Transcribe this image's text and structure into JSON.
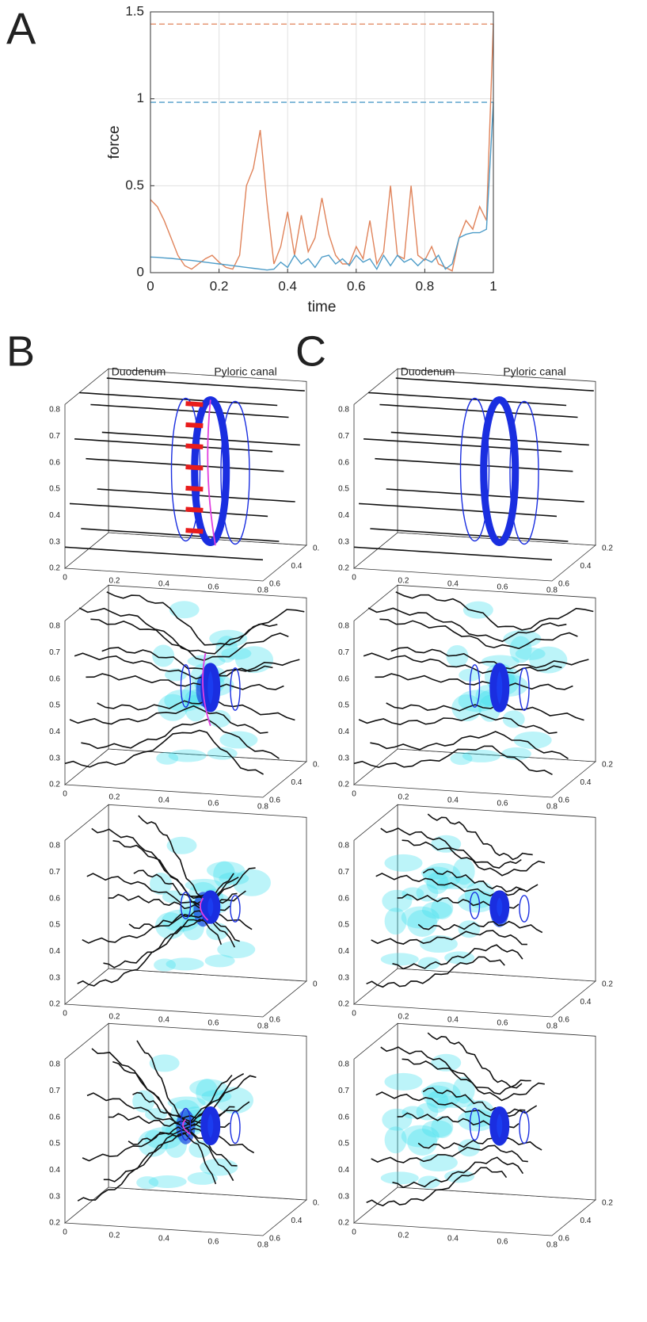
{
  "chart_data": [
    {
      "type": "line",
      "panel_label": "A",
      "x_label": "time",
      "y_label": "force",
      "xlim": [
        0,
        1
      ],
      "ylim": [
        0,
        1.5
      ],
      "xticks": [
        0,
        0.2,
        0.4,
        0.6,
        0.8,
        1
      ],
      "yticks": [
        0,
        0.5,
        1,
        1.5
      ],
      "grid": true,
      "x": [
        0,
        0.02,
        0.04,
        0.06,
        0.08,
        0.1,
        0.12,
        0.14,
        0.16,
        0.18,
        0.2,
        0.22,
        0.24,
        0.26,
        0.28,
        0.3,
        0.32,
        0.34,
        0.36,
        0.38,
        0.4,
        0.42,
        0.44,
        0.46,
        0.48,
        0.5,
        0.52,
        0.54,
        0.56,
        0.58,
        0.6,
        0.62,
        0.64,
        0.66,
        0.68,
        0.7,
        0.72,
        0.74,
        0.76,
        0.78,
        0.8,
        0.82,
        0.84,
        0.86,
        0.88,
        0.9,
        0.92,
        0.94,
        0.96,
        0.98,
        1
      ],
      "series": [
        {
          "color": "#e0835a",
          "values": [
            0.42,
            0.38,
            0.3,
            0.2,
            0.1,
            0.04,
            0.02,
            0.05,
            0.08,
            0.1,
            0.06,
            0.03,
            0.02,
            0.1,
            0.5,
            0.6,
            0.82,
            0.4,
            0.05,
            0.15,
            0.35,
            0.1,
            0.33,
            0.12,
            0.2,
            0.43,
            0.22,
            0.1,
            0.05,
            0.05,
            0.15,
            0.08,
            0.3,
            0.05,
            0.12,
            0.5,
            0.1,
            0.08,
            0.5,
            0.1,
            0.07,
            0.15,
            0.05,
            0.03,
            0.01,
            0.2,
            0.3,
            0.25,
            0.38,
            0.3,
            1.43
          ]
        },
        {
          "color": "#4d9cc8",
          "values": [
            0.09,
            0.088,
            0.085,
            0.082,
            0.078,
            0.074,
            0.07,
            0.065,
            0.06,
            0.055,
            0.05,
            0.045,
            0.04,
            0.035,
            0.03,
            0.025,
            0.02,
            0.015,
            0.02,
            0.06,
            0.03,
            0.1,
            0.05,
            0.08,
            0.03,
            0.09,
            0.1,
            0.05,
            0.08,
            0.04,
            0.1,
            0.06,
            0.08,
            0.02,
            0.1,
            0.04,
            0.1,
            0.06,
            0.08,
            0.04,
            0.08,
            0.06,
            0.1,
            0.02,
            0.05,
            0.2,
            0.22,
            0.23,
            0.23,
            0.25,
            0.98
          ]
        }
      ],
      "hlines": [
        {
          "value": 1.43,
          "color": "#e0835a"
        },
        {
          "value": 0.98,
          "color": "#4d9cc8"
        }
      ]
    },
    {
      "type": "streamline3d",
      "panel_label": "B",
      "column_labels": [
        "Duodenum",
        "Pyloric canal"
      ],
      "xticks": [
        0,
        0.2,
        0.4,
        0.6,
        0.8
      ],
      "yticks": [
        {
          "value": 0.2,
          "label": "0."
        },
        0.4,
        0.6
      ],
      "zticks": [
        0.2,
        0.3,
        0.4,
        0.5,
        0.6,
        0.7,
        0.8
      ]
    },
    {
      "type": "streamline3d",
      "xticks": [
        0,
        0.2,
        0.4,
        0.6,
        0.8
      ],
      "yticks": [
        {
          "value": 0.2,
          "label": "0."
        },
        0.4,
        0.6
      ],
      "zticks": [
        0.2,
        0.3,
        0.4,
        0.5,
        0.6,
        0.7,
        0.8
      ]
    },
    {
      "type": "streamline3d",
      "xticks": [
        0,
        0.2,
        0.4,
        0.6,
        0.8
      ],
      "yticks": [
        {
          "value": 0.2,
          "label": "0"
        },
        0.6
      ],
      "zticks": [
        0.2,
        0.3,
        0.4,
        0.5,
        0.6,
        0.7,
        0.8
      ]
    },
    {
      "type": "streamline3d",
      "xticks": [
        0,
        0.2,
        0.4,
        0.6,
        0.8
      ],
      "yticks": [
        {
          "value": 0.2,
          "label": "0."
        },
        0.4,
        0.6
      ],
      "zticks": [
        0.2,
        0.3,
        0.4,
        0.5,
        0.6,
        0.7,
        0.8
      ]
    },
    {
      "type": "streamline3d",
      "panel_label": "C",
      "column_labels": [
        "Duodenum",
        "Pyloric canal"
      ],
      "xticks": [
        0,
        0.2,
        0.4,
        0.6,
        0.8
      ],
      "yticks": [
        0.2,
        0.4,
        0.6
      ],
      "zticks": [
        0.2,
        0.3,
        0.4,
        0.5,
        0.6,
        0.7,
        0.8
      ]
    },
    {
      "type": "streamline3d",
      "xticks": [
        0,
        0.2,
        0.4,
        0.6,
        0.8
      ],
      "yticks": [
        0.2,
        0.4,
        0.6
      ],
      "zticks": [
        0.2,
        0.3,
        0.4,
        0.5,
        0.6,
        0.7,
        0.8
      ]
    },
    {
      "type": "streamline3d",
      "xticks": [
        0,
        0.2,
        0.4,
        0.6,
        0.8
      ],
      "yticks": [
        0.2,
        0.4,
        0.6
      ],
      "zticks": [
        0.2,
        0.3,
        0.4,
        0.5,
        0.6,
        0.7,
        0.8
      ]
    },
    {
      "type": "streamline3d",
      "xticks": [
        0,
        0.2,
        0.4,
        0.6,
        0.8
      ],
      "yticks": [
        0.2,
        0.4,
        0.6
      ],
      "zticks": [
        0.2,
        0.3,
        0.4,
        0.5,
        0.6,
        0.7,
        0.8
      ]
    }
  ]
}
